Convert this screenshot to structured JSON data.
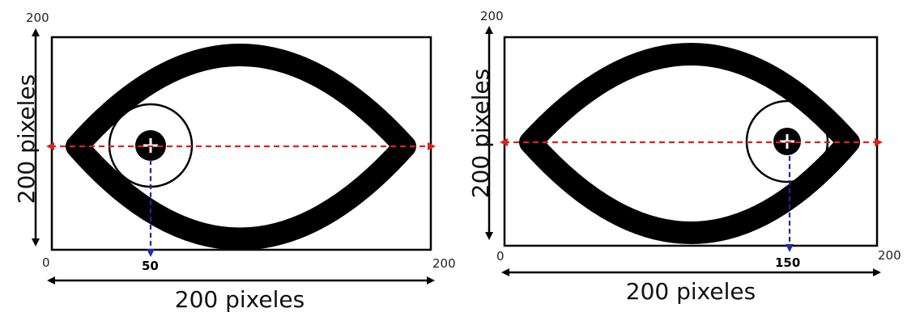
{
  "colors": {
    "red_axis": "#e0201c",
    "blue_drop": "#1d2aa8",
    "outline": "#000000",
    "background": "#ffffff"
  },
  "panels": [
    {
      "id": "left",
      "top_value": "200",
      "origin": "0",
      "x_max": "200",
      "pupil_value": "50",
      "pupil_position": 50,
      "vertical_label": "200 pixeles",
      "horizontal_label": "200 pixeles"
    },
    {
      "id": "right",
      "top_value": "200",
      "origin": "0",
      "x_max": "200",
      "pupil_value": "150",
      "pupil_position": 150,
      "vertical_label": "200 pixeles",
      "horizontal_label": "200 pixeles"
    }
  ]
}
